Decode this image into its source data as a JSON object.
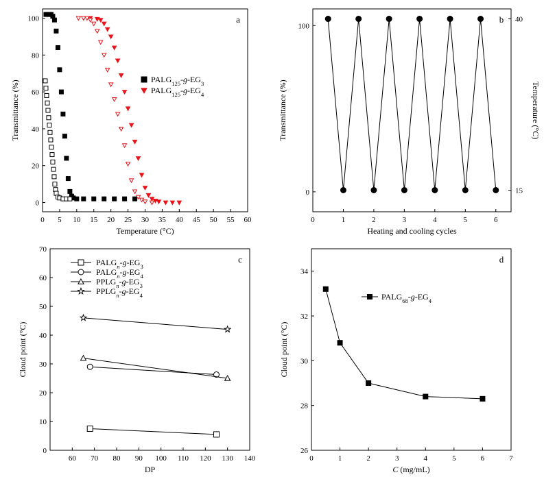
{
  "chart_data": [
    {
      "id": "a",
      "type": "scatter",
      "panel_label": "a",
      "xlabel": "Temperature (°C)",
      "ylabel": "Transmittance (%)",
      "xlim": [
        0,
        60
      ],
      "ylim": [
        -5,
        105
      ],
      "xticks": [
        0,
        5,
        10,
        15,
        20,
        25,
        30,
        35,
        40,
        45,
        50,
        55,
        60
      ],
      "yticks": [
        0,
        20,
        40,
        60,
        80,
        100
      ],
      "legend_position": "right",
      "series": [
        {
          "name_parts": [
            "PALG",
            "125",
            "-",
            "g",
            "-EG",
            "3"
          ],
          "sub_idx": [
            1,
            5
          ],
          "ital_idx": [
            3
          ],
          "color": "#000000",
          "marker": "square",
          "filled": true,
          "points": [
            [
              1,
              102
            ],
            [
              1.5,
              102
            ],
            [
              2,
              102
            ],
            [
              2.5,
              102
            ],
            [
              3,
              101
            ],
            [
              3.5,
              99
            ],
            [
              4,
              93
            ],
            [
              4.5,
              84
            ],
            [
              5,
              72
            ],
            [
              5.5,
              60
            ],
            [
              6,
              48
            ],
            [
              6.5,
              36
            ],
            [
              7,
              24
            ],
            [
              7.5,
              13
            ],
            [
              8,
              6
            ],
            [
              8.5,
              3.5
            ],
            [
              9,
              2.5
            ],
            [
              10,
              2
            ],
            [
              12,
              2
            ],
            [
              15,
              2
            ],
            [
              18,
              2
            ],
            [
              21,
              2
            ],
            [
              24,
              2
            ],
            [
              27,
              2
            ]
          ]
        },
        {
          "name": "",
          "color": "#000000",
          "marker": "square",
          "filled": false,
          "points": [
            [
              0.8,
              66
            ],
            [
              1,
              62
            ],
            [
              1.2,
              58
            ],
            [
              1.4,
              54
            ],
            [
              1.6,
              50
            ],
            [
              1.8,
              46
            ],
            [
              2,
              42
            ],
            [
              2.2,
              38
            ],
            [
              2.4,
              34
            ],
            [
              2.6,
              30
            ],
            [
              2.8,
              26
            ],
            [
              3,
              22
            ],
            [
              3.2,
              18
            ],
            [
              3.4,
              14
            ],
            [
              3.6,
              10
            ],
            [
              3.8,
              7
            ],
            [
              4,
              5
            ],
            [
              4.5,
              3
            ],
            [
              5,
              2.5
            ],
            [
              6,
              2
            ],
            [
              7,
              2
            ],
            [
              8,
              2
            ]
          ]
        },
        {
          "name_parts": [
            "PALG",
            "125",
            "-",
            "g",
            "-EG",
            "4"
          ],
          "sub_idx": [
            1,
            5
          ],
          "ital_idx": [
            3
          ],
          "color": "#e8141b",
          "marker": "triangle-down",
          "filled": true,
          "points": [
            [
              12,
              100
            ],
            [
              14,
              100
            ],
            [
              16,
              99.5
            ],
            [
              17,
              99
            ],
            [
              18,
              97
            ],
            [
              19,
              94
            ],
            [
              20,
              90
            ],
            [
              21,
              84
            ],
            [
              22,
              77
            ],
            [
              23,
              69
            ],
            [
              24,
              60
            ],
            [
              25,
              51
            ],
            [
              26,
              42
            ],
            [
              27,
              33
            ],
            [
              28,
              24
            ],
            [
              29,
              15
            ],
            [
              30,
              8
            ],
            [
              31,
              4
            ],
            [
              32,
              2
            ],
            [
              33,
              1
            ],
            [
              34,
              0.5
            ],
            [
              36,
              0
            ],
            [
              38,
              0
            ],
            [
              40,
              0
            ]
          ]
        },
        {
          "name": "",
          "color": "#e8141b",
          "marker": "triangle-down",
          "filled": false,
          "points": [
            [
              10.5,
              100
            ],
            [
              12,
              100
            ],
            [
              13,
              100
            ],
            [
              14,
              99
            ],
            [
              15,
              97
            ],
            [
              16,
              93
            ],
            [
              17,
              87
            ],
            [
              18,
              80
            ],
            [
              19,
              72
            ],
            [
              20,
              64
            ],
            [
              21,
              56
            ],
            [
              22,
              48
            ],
            [
              23,
              40
            ],
            [
              24,
              31
            ],
            [
              25,
              21
            ],
            [
              26,
              12
            ],
            [
              27,
              6
            ],
            [
              28,
              3
            ],
            [
              29,
              1.5
            ],
            [
              30,
              0.5
            ],
            [
              32,
              0
            ]
          ]
        }
      ]
    },
    {
      "id": "b",
      "type": "line",
      "panel_label": "b",
      "xlabel": "Heating and cooling cycles",
      "ylabel": "Transmittance (%)",
      "ylabel_right": "Temperature (°C)",
      "xlim": [
        0,
        6.5
      ],
      "ylim": [
        -12,
        110
      ],
      "xticks": [
        0,
        1,
        2,
        3,
        4,
        5,
        6
      ],
      "yticks_left": [
        0,
        100
      ],
      "yticks_right_labels": [
        "15",
        "40"
      ],
      "series": [
        {
          "name": "",
          "color": "#000000",
          "marker": "circle",
          "filled": true,
          "points": [
            [
              0.5,
              104
            ],
            [
              1,
              1
            ],
            [
              1.5,
              104
            ],
            [
              2,
              1
            ],
            [
              2.5,
              104
            ],
            [
              3,
              1
            ],
            [
              3.5,
              104
            ],
            [
              4,
              1
            ],
            [
              4.5,
              104
            ],
            [
              5,
              1
            ],
            [
              5.5,
              104
            ],
            [
              6,
              1
            ]
          ]
        }
      ]
    },
    {
      "id": "c",
      "type": "line",
      "panel_label": "c",
      "xlabel": "DP",
      "ylabel": "Cloud point (°C)",
      "xlim": [
        50,
        140
      ],
      "ylim": [
        0,
        70
      ],
      "xticks": [
        60,
        70,
        80,
        90,
        100,
        110,
        120,
        130,
        140
      ],
      "yticks": [
        0,
        10,
        20,
        30,
        40,
        50,
        60,
        70
      ],
      "legend_position": "top-left",
      "series": [
        {
          "name_parts": [
            "PALG",
            "n",
            "-",
            "g",
            "-EG",
            "3"
          ],
          "sub_idx": [
            1,
            5
          ],
          "ital_idx": [
            1,
            3
          ],
          "marker": "square",
          "color": "#000000",
          "filled": false,
          "points": [
            [
              68,
              7.5
            ],
            [
              125,
              5.5
            ]
          ]
        },
        {
          "name_parts": [
            "PALG",
            "n",
            "-",
            "g",
            "-EG",
            "4"
          ],
          "sub_idx": [
            1,
            5
          ],
          "ital_idx": [
            1,
            3
          ],
          "marker": "circle",
          "color": "#000000",
          "filled": false,
          "points": [
            [
              68,
              29
            ],
            [
              125,
              26.3
            ]
          ]
        },
        {
          "name_parts": [
            "PPLG",
            "n",
            "-",
            "g",
            "-EG",
            "3"
          ],
          "sub_idx": [
            1,
            5
          ],
          "ital_idx": [
            1,
            3
          ],
          "marker": "triangle-up",
          "color": "#000000",
          "filled": false,
          "points": [
            [
              65,
              32
            ],
            [
              130,
              25
            ]
          ]
        },
        {
          "name_parts": [
            "PPLG",
            "n",
            "-",
            "g",
            "-EG",
            "4"
          ],
          "sub_idx": [
            1,
            5
          ],
          "ital_idx": [
            1,
            3
          ],
          "marker": "star",
          "color": "#000000",
          "filled": false,
          "points": [
            [
              65,
              46
            ],
            [
              130,
              42
            ]
          ]
        }
      ]
    },
    {
      "id": "d",
      "type": "line",
      "panel_label": "d",
      "xlabel_parts": [
        "C",
        " (mg/mL)"
      ],
      "ylabel": "Cloud point (°C)",
      "xlim": [
        0,
        7
      ],
      "ylim": [
        26,
        35
      ],
      "xticks": [
        0,
        1,
        2,
        3,
        4,
        5,
        6,
        7
      ],
      "yticks": [
        26,
        28,
        30,
        32,
        34
      ],
      "legend_position": "top-right",
      "series": [
        {
          "name_parts": [
            "PALG",
            "68",
            "-",
            "g",
            "-EG",
            "4"
          ],
          "sub_idx": [
            1,
            5
          ],
          "ital_idx": [
            3
          ],
          "marker": "square",
          "color": "#000000",
          "filled": true,
          "points": [
            [
              0.5,
              33.2
            ],
            [
              1,
              30.8
            ],
            [
              2,
              29
            ],
            [
              4,
              28.4
            ],
            [
              6,
              28.3
            ]
          ]
        }
      ]
    }
  ]
}
